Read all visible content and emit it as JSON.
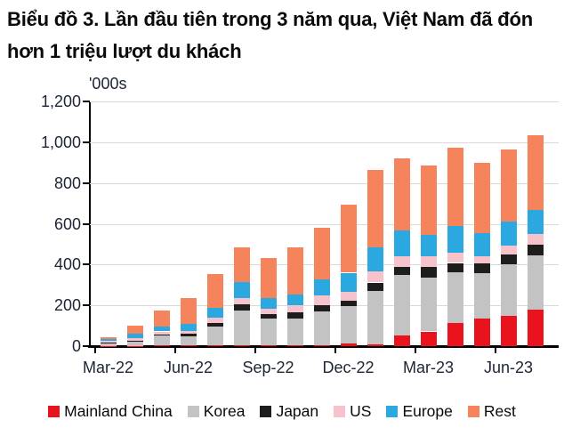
{
  "title": "Biểu đồ 3. Lần đầu tiên trong 3 năm qua, Việt Nam đã đón hơn 1 triệu lượt du khách",
  "unit_label": "'000s",
  "chart_data": {
    "type": "bar",
    "stacked": true,
    "title": "Biểu đồ 3. Lần đầu tiên trong 3 năm qua, Việt Nam đã đón hơn 1 triệu lượt du khách",
    "ylabel": "'000s",
    "ylim": [
      0,
      1200
    ],
    "grid": "horizontal",
    "legend_position": "bottom",
    "y_ticks": [
      0,
      200,
      400,
      600,
      800,
      1000,
      1200
    ],
    "y_tick_labels": [
      "0",
      "200",
      "400",
      "600",
      "800",
      "1,000",
      "1,200"
    ],
    "categories": [
      "Mar-22",
      "Apr-22",
      "May-22",
      "Jun-22",
      "Jul-22",
      "Aug-22",
      "Sep-22",
      "Oct-22",
      "Nov-22",
      "Dec-22",
      "Jan-23",
      "Feb-23",
      "Mar-23",
      "Apr-23",
      "May-23",
      "Jun-23",
      "Jul-23"
    ],
    "x_tick_labels": [
      "Mar-22",
      "Jun-22",
      "Sep-22",
      "Dec-22",
      "Mar-23",
      "Jun-23"
    ],
    "x_tick_category_indexes": [
      0,
      3,
      6,
      9,
      12,
      15
    ],
    "series": [
      {
        "name": "Mainland China",
        "color": "#e8131d",
        "values": [
          1,
          2,
          3,
          4,
          3,
          4,
          3,
          5,
          5,
          15,
          10,
          52,
          72,
          113,
          135,
          150,
          180
        ]
      },
      {
        "name": "Korea",
        "color": "#c3c3c3",
        "values": [
          16,
          20,
          48,
          45,
          92,
          171,
          132,
          130,
          167,
          180,
          262,
          295,
          266,
          248,
          225,
          250,
          263
        ]
      },
      {
        "name": "Japan",
        "color": "#1d1d1d",
        "values": [
          2,
          3,
          6,
          10,
          20,
          28,
          20,
          30,
          30,
          29,
          40,
          42,
          50,
          47,
          45,
          48,
          55
        ]
      },
      {
        "name": "US",
        "color": "#f6c2cb",
        "values": [
          6,
          14,
          15,
          16,
          23,
          33,
          29,
          35,
          48,
          43,
          55,
          50,
          51,
          50,
          36,
          43,
          53
        ]
      },
      {
        "name": "Europe",
        "color": "#2ba8e0",
        "values": [
          9,
          20,
          25,
          36,
          48,
          77,
          53,
          55,
          79,
          93,
          117,
          130,
          107,
          129,
          115,
          122,
          115
        ]
      },
      {
        "name": "Rest",
        "color": "#f5845c",
        "values": [
          11,
          42,
          76,
          126,
          167,
          173,
          195,
          230,
          253,
          335,
          381,
          351,
          339,
          388,
          344,
          352,
          369
        ]
      }
    ],
    "totals": [
      45,
      101,
      173,
      237,
      353,
      486,
      432,
      485,
      582,
      695,
      865,
      920,
      885,
      975,
      900,
      965,
      1035
    ]
  }
}
